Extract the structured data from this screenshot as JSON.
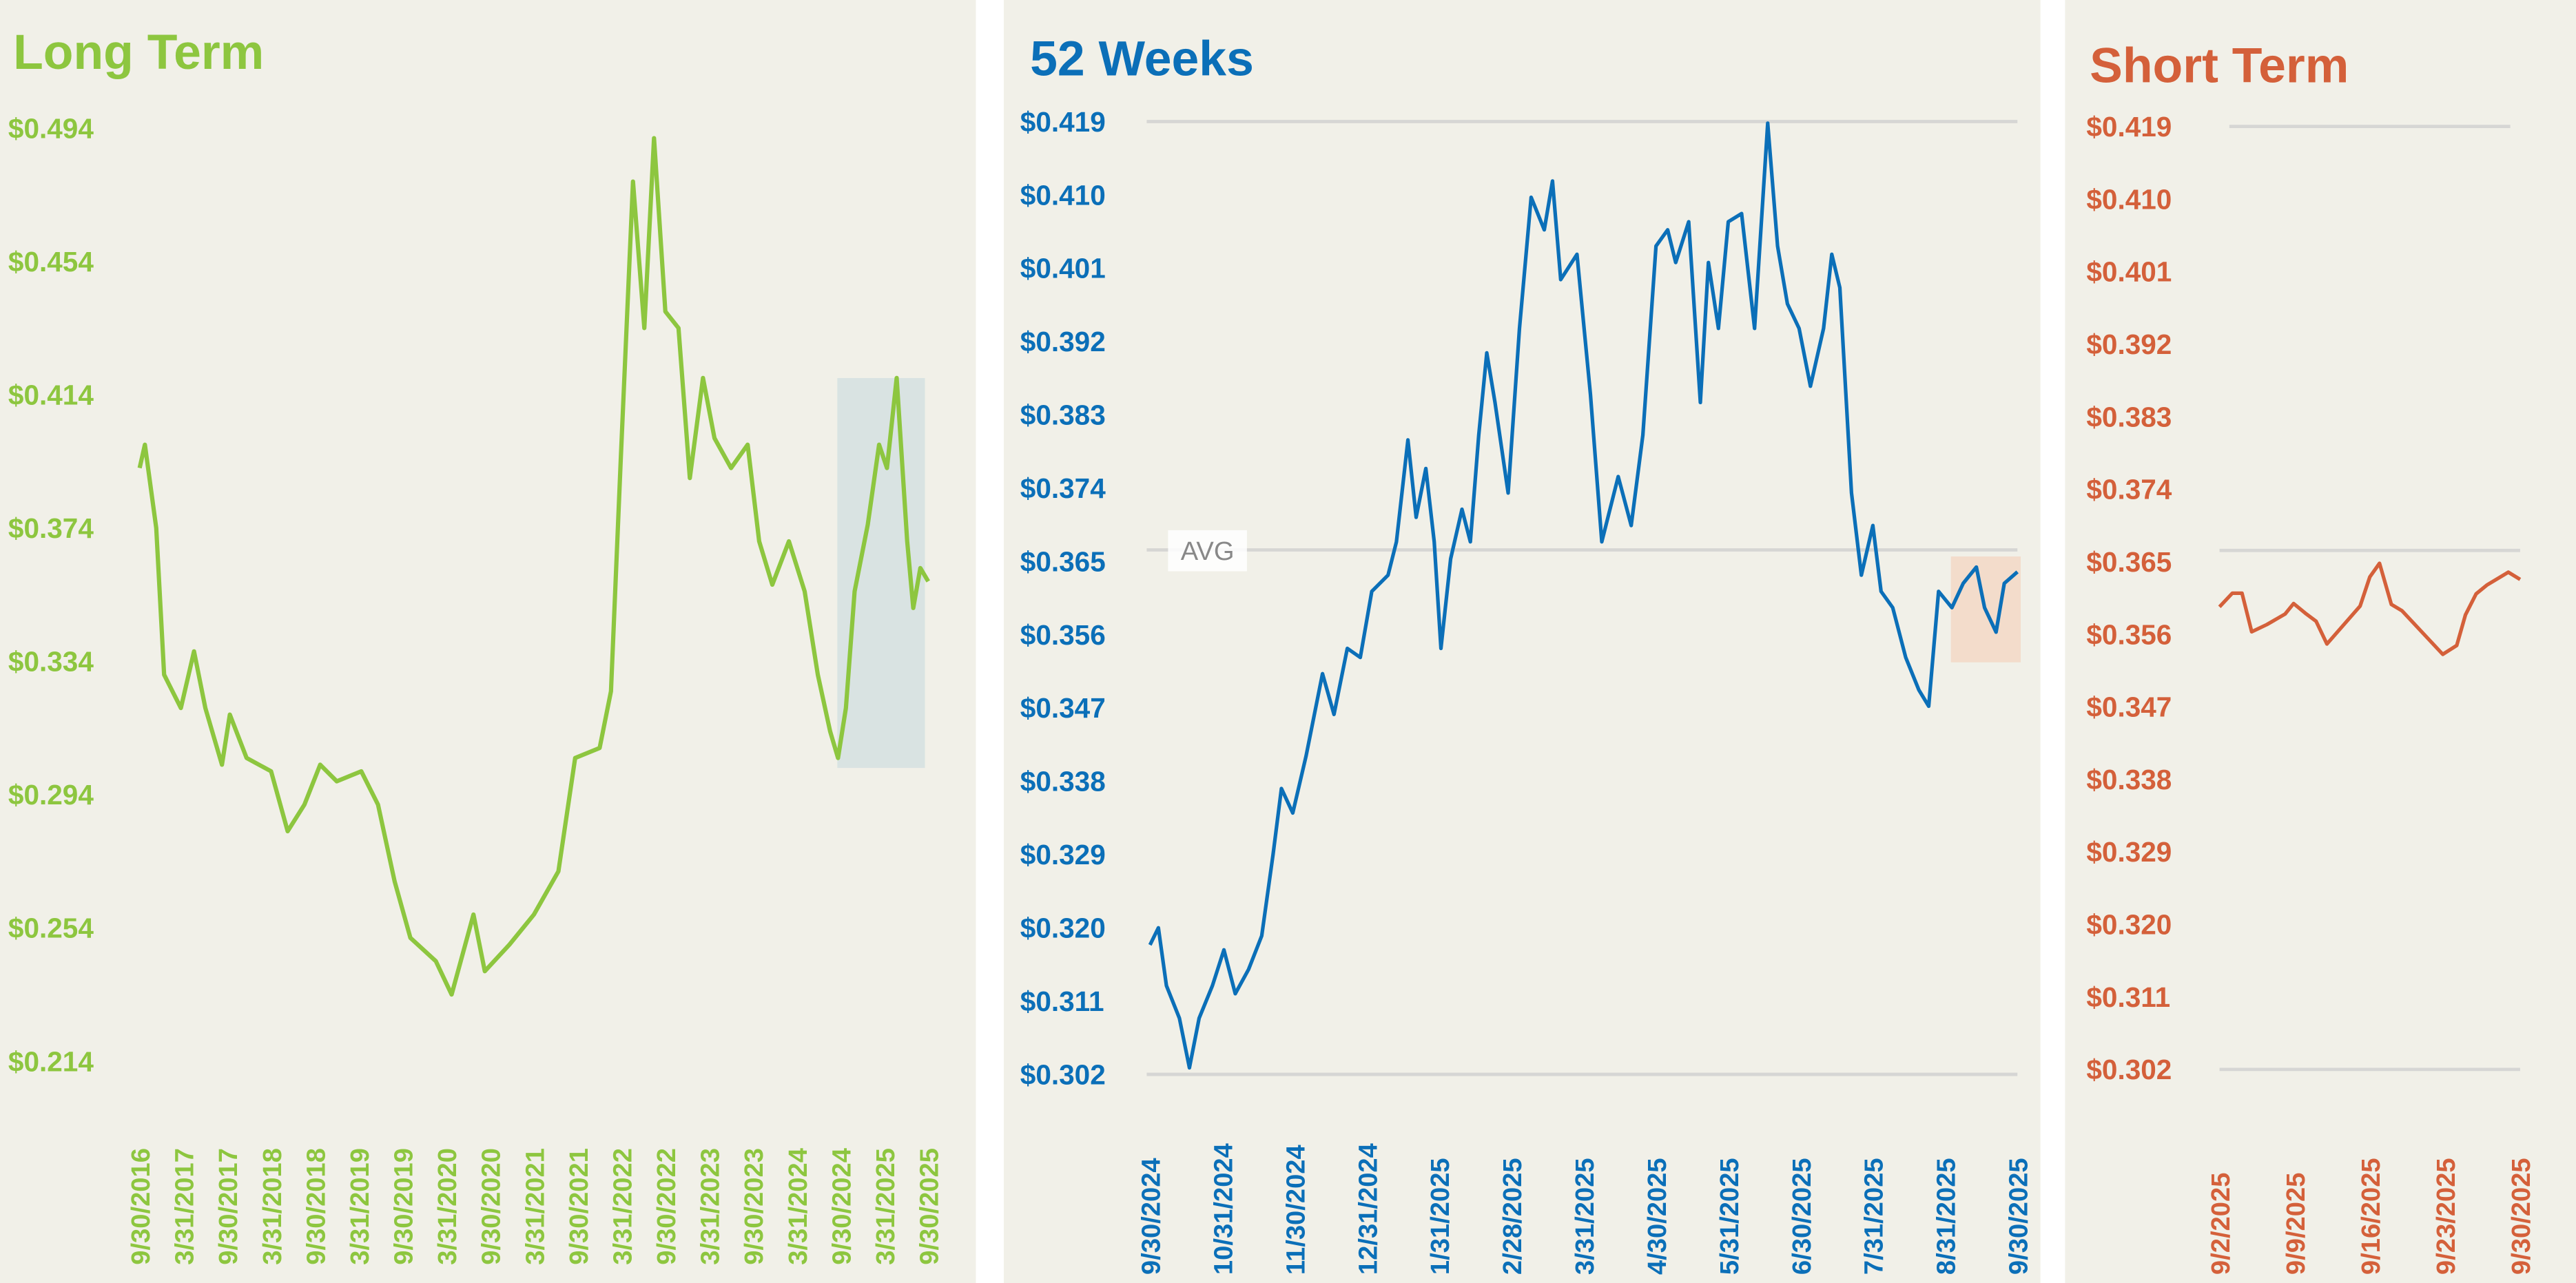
{
  "colors": {
    "long": "#8dc63f",
    "weeks": "#0b6fb8",
    "short": "#d4603a",
    "panel": "#f1f0e8",
    "grid": "#d6d6d4",
    "long_highlight": "#d9e3e2",
    "weeks_highlight": "#f3dccb"
  },
  "chart_data": [
    {
      "type": "line",
      "title": "Long Term",
      "xlabel": "",
      "ylabel": "",
      "ylim": [
        0.214,
        0.494
      ],
      "yticks": [
        "$0.494",
        "$0.454",
        "$0.414",
        "$0.374",
        "$0.334",
        "$0.294",
        "$0.254",
        "$0.214"
      ],
      "ytick_values": [
        0.494,
        0.454,
        0.414,
        0.374,
        0.334,
        0.294,
        0.254,
        0.214
      ],
      "xlim_years": [
        2016.75,
        2025.75
      ],
      "xticks": [
        "9/30/2016",
        "3/31/2017",
        "9/30/2017",
        "3/31/2018",
        "9/30/2018",
        "3/31/2019",
        "9/30/2019",
        "3/31/2020",
        "9/30/2020",
        "3/31/2021",
        "9/30/2021",
        "3/31/2022",
        "9/30/2022",
        "3/31/2023",
        "9/30/2023",
        "3/31/2024",
        "9/30/2024",
        "3/31/2025",
        "9/30/2025"
      ],
      "highlight_years": [
        2024.75,
        2025.75
      ],
      "highlight_values": [
        0.302,
        0.419
      ],
      "points": [
        [
          2016.75,
          0.392
        ],
        [
          2016.81,
          0.399
        ],
        [
          2016.94,
          0.374
        ],
        [
          2017.03,
          0.33
        ],
        [
          2017.22,
          0.32
        ],
        [
          2017.37,
          0.337
        ],
        [
          2017.5,
          0.32
        ],
        [
          2017.69,
          0.303
        ],
        [
          2017.78,
          0.318
        ],
        [
          2017.97,
          0.305
        ],
        [
          2018.25,
          0.301
        ],
        [
          2018.44,
          0.283
        ],
        [
          2018.63,
          0.291
        ],
        [
          2018.81,
          0.303
        ],
        [
          2019.0,
          0.298
        ],
        [
          2019.28,
          0.301
        ],
        [
          2019.47,
          0.291
        ],
        [
          2019.66,
          0.268
        ],
        [
          2019.84,
          0.251
        ],
        [
          2020.13,
          0.244
        ],
        [
          2020.31,
          0.234
        ],
        [
          2020.56,
          0.258
        ],
        [
          2020.69,
          0.241
        ],
        [
          2020.97,
          0.249
        ],
        [
          2021.25,
          0.258
        ],
        [
          2021.53,
          0.271
        ],
        [
          2021.72,
          0.305
        ],
        [
          2022.0,
          0.308
        ],
        [
          2022.13,
          0.325
        ],
        [
          2022.24,
          0.394
        ],
        [
          2022.38,
          0.478
        ],
        [
          2022.51,
          0.434
        ],
        [
          2022.62,
          0.491
        ],
        [
          2022.75,
          0.439
        ],
        [
          2022.9,
          0.434
        ],
        [
          2023.03,
          0.389
        ],
        [
          2023.18,
          0.419
        ],
        [
          2023.31,
          0.401
        ],
        [
          2023.5,
          0.392
        ],
        [
          2023.69,
          0.399
        ],
        [
          2023.82,
          0.37
        ],
        [
          2023.97,
          0.357
        ],
        [
          2024.16,
          0.37
        ],
        [
          2024.34,
          0.355
        ],
        [
          2024.49,
          0.33
        ],
        [
          2024.63,
          0.313
        ],
        [
          2024.72,
          0.305
        ],
        [
          2024.81,
          0.32
        ],
        [
          2024.91,
          0.355
        ],
        [
          2025.06,
          0.375
        ],
        [
          2025.19,
          0.399
        ],
        [
          2025.28,
          0.392
        ],
        [
          2025.39,
          0.419
        ],
        [
          2025.51,
          0.37
        ],
        [
          2025.58,
          0.35
        ],
        [
          2025.66,
          0.362
        ],
        [
          2025.75,
          0.358
        ]
      ]
    },
    {
      "type": "line",
      "title": "52 Weeks",
      "xlabel": "",
      "ylabel": "",
      "ylim": [
        0.302,
        0.419
      ],
      "yticks": [
        "$0.419",
        "$0.410",
        "$0.401",
        "$0.392",
        "$0.383",
        "$0.374",
        "$0.365",
        "$0.356",
        "$0.347",
        "$0.338",
        "$0.329",
        "$0.320",
        "$0.311",
        "$0.302"
      ],
      "xlim_days": [
        0,
        365
      ],
      "xticks": [
        "9/30/2024",
        "10/31/2024",
        "11/30/2024",
        "12/31/2024",
        "1/31/2025",
        "2/28/2025",
        "3/31/2025",
        "4/30/2025",
        "5/31/2025",
        "6/30/2025",
        "7/31/2025",
        "8/31/2025",
        "9/30/2025"
      ],
      "avg_label": "AVG",
      "avg_value": 0.3664,
      "highlight_days": [
        337,
        365
      ],
      "highlight_values": [
        0.353,
        0.366
      ],
      "points": [
        [
          0,
          0.3179
        ],
        [
          3.5,
          0.32
        ],
        [
          6.9,
          0.3129
        ],
        [
          12.4,
          0.3089
        ],
        [
          16.6,
          0.3028
        ],
        [
          20.7,
          0.3089
        ],
        [
          26.3,
          0.3129
        ],
        [
          31.1,
          0.3173
        ],
        [
          35.9,
          0.3119
        ],
        [
          41.5,
          0.3149
        ],
        [
          47.0,
          0.319
        ],
        [
          51.8,
          0.329
        ],
        [
          55.3,
          0.3371
        ],
        [
          60.1,
          0.3341
        ],
        [
          65.7,
          0.3411
        ],
        [
          72.6,
          0.3512
        ],
        [
          77.4,
          0.3462
        ],
        [
          83.0,
          0.3543
        ],
        [
          88.5,
          0.3532
        ],
        [
          93.3,
          0.3613
        ],
        [
          100.2,
          0.3633
        ],
        [
          103.7,
          0.3674
        ],
        [
          108.5,
          0.3799
        ],
        [
          112.0,
          0.3704
        ],
        [
          116.1,
          0.3764
        ],
        [
          119.6,
          0.3674
        ],
        [
          122.4,
          0.3543
        ],
        [
          126.5,
          0.3653
        ],
        [
          131.3,
          0.3714
        ],
        [
          134.8,
          0.3674
        ],
        [
          138.3,
          0.3805
        ],
        [
          141.7,
          0.3906
        ],
        [
          145.2,
          0.3845
        ],
        [
          150.7,
          0.3734
        ],
        [
          155.5,
          0.3936
        ],
        [
          160.4,
          0.4097
        ],
        [
          165.9,
          0.4057
        ],
        [
          169.4,
          0.4117
        ],
        [
          172.8,
          0.3996
        ],
        [
          179.7,
          0.4027
        ],
        [
          185.3,
          0.3855
        ],
        [
          190.1,
          0.3674
        ],
        [
          197.0,
          0.3754
        ],
        [
          202.5,
          0.3694
        ],
        [
          207.4,
          0.3805
        ],
        [
          212.9,
          0.4037
        ],
        [
          217.8,
          0.4057
        ],
        [
          221.2,
          0.4017
        ],
        [
          226.7,
          0.4067
        ],
        [
          231.6,
          0.3845
        ],
        [
          235.0,
          0.4017
        ],
        [
          239.2,
          0.3936
        ],
        [
          243.3,
          0.4067
        ],
        [
          248.9,
          0.4077
        ],
        [
          254.4,
          0.3936
        ],
        [
          259.9,
          0.4188
        ],
        [
          264.1,
          0.4037
        ],
        [
          268.2,
          0.3966
        ],
        [
          273.1,
          0.3936
        ],
        [
          277.9,
          0.3865
        ],
        [
          283.4,
          0.3936
        ],
        [
          286.9,
          0.4027
        ],
        [
          290.3,
          0.3986
        ],
        [
          295.2,
          0.3734
        ],
        [
          299.3,
          0.3633
        ],
        [
          304.2,
          0.3694
        ],
        [
          307.6,
          0.3613
        ],
        [
          312.5,
          0.3593
        ],
        [
          318.0,
          0.3532
        ],
        [
          323.5,
          0.3492
        ],
        [
          327.7,
          0.3472
        ],
        [
          331.8,
          0.3613
        ],
        [
          337.4,
          0.3593
        ],
        [
          342.2,
          0.3623
        ],
        [
          347.7,
          0.3643
        ],
        [
          351.2,
          0.3593
        ],
        [
          356.0,
          0.3563
        ],
        [
          359.5,
          0.3623
        ],
        [
          365,
          0.3637
        ]
      ]
    },
    {
      "type": "line",
      "title": "Short Term",
      "xlabel": "",
      "ylabel": "",
      "ylim": [
        0.302,
        0.419
      ],
      "yticks": [
        "$0.419",
        "$0.410",
        "$0.401",
        "$0.392",
        "$0.383",
        "$0.374",
        "$0.365",
        "$0.356",
        "$0.347",
        "$0.338",
        "$0.329",
        "$0.320",
        "$0.311",
        "$0.302"
      ],
      "xlim_days": [
        0,
        28
      ],
      "xticks": [
        "9/2/2025",
        "9/9/2025",
        "9/16/2025",
        "9/23/2025",
        "9/30/2025"
      ],
      "avg_value": 0.3664,
      "points": [
        [
          0,
          0.3594
        ],
        [
          1.2,
          0.3611
        ],
        [
          2.1,
          0.3611
        ],
        [
          3.0,
          0.3563
        ],
        [
          4.4,
          0.3572
        ],
        [
          6.1,
          0.3585
        ],
        [
          6.9,
          0.3598
        ],
        [
          8.1,
          0.3585
        ],
        [
          9.0,
          0.3576
        ],
        [
          10.0,
          0.3548
        ],
        [
          13.1,
          0.3595
        ],
        [
          14.0,
          0.3631
        ],
        [
          14.9,
          0.3648
        ],
        [
          16.0,
          0.3597
        ],
        [
          17.0,
          0.3589
        ],
        [
          20.8,
          0.3535
        ],
        [
          22.1,
          0.3546
        ],
        [
          22.9,
          0.3584
        ],
        [
          23.9,
          0.361
        ],
        [
          24.9,
          0.3621
        ],
        [
          26.9,
          0.3637
        ],
        [
          28,
          0.3628
        ]
      ]
    }
  ]
}
